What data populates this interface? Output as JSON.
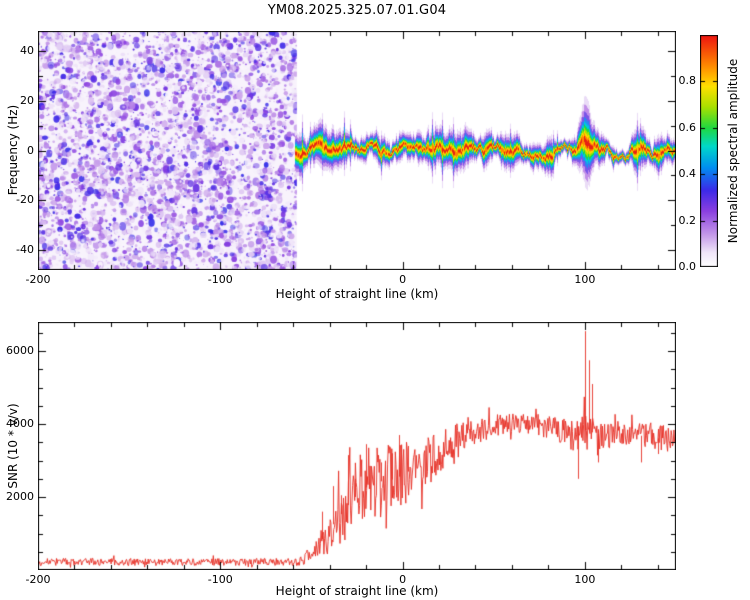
{
  "title": "YM08.2025.325.07.01.G04",
  "colors": {
    "frame": "#000000",
    "background": "#ffffff",
    "snr_line": "#e62e24",
    "noise_wash": "#f8f3fc"
  },
  "chart_data": [
    {
      "id": "spectrogram",
      "type": "heatmap",
      "title": "",
      "xlabel": "Height of straight line (km)",
      "ylabel": "Frequency (Hz)",
      "xlim": [
        -200,
        150
      ],
      "ylim": [
        -48,
        48
      ],
      "xticks": [
        -200,
        -100,
        0,
        100
      ],
      "yticks": [
        -40,
        -20,
        0,
        20,
        40
      ],
      "grid": false,
      "colorbar": {
        "label": "Normalized spectral amplitude",
        "ticks": [
          "0.0",
          "0.2",
          "0.4",
          "0.6",
          "0.8"
        ],
        "tick_values": [
          0,
          0.2,
          0.4,
          0.6,
          0.8
        ],
        "range": [
          0,
          1
        ],
        "stops": [
          [
            0.0,
            "#ffffff"
          ],
          [
            0.06,
            "#f0e6f9"
          ],
          [
            0.14,
            "#c396e8"
          ],
          [
            0.24,
            "#8a3fe0"
          ],
          [
            0.33,
            "#3c2ae8"
          ],
          [
            0.43,
            "#0090f0"
          ],
          [
            0.52,
            "#00d8c8"
          ],
          [
            0.6,
            "#20d840"
          ],
          [
            0.69,
            "#a8e000"
          ],
          [
            0.78,
            "#ffe000"
          ],
          [
            0.87,
            "#ff8800"
          ],
          [
            1.0,
            "#ee1410"
          ]
        ]
      },
      "noise_region": {
        "x_range": [
          -200,
          -58
        ],
        "description": "broadband random speckle noise, amplitudes 0.0-0.35",
        "amplitude_range": [
          0.02,
          0.34
        ]
      },
      "echo_band": {
        "x_range": [
          -59,
          150
        ],
        "center_hz": 0,
        "sigma_hz": 2.0,
        "wobble_hz": 2.5,
        "amplitude": 1.0,
        "start_blob": {
          "x": -57,
          "extra_sigma_hz": 1.6
        },
        "peak": {
          "x": 100,
          "extra_sigma_hz": 3.2,
          "upshift_hz": 4.5,
          "top_extent_hz": 20
        }
      }
    },
    {
      "id": "snr",
      "type": "line",
      "title": "",
      "xlabel": "Height of straight line (km)",
      "ylabel": "SNR (10 * v/v)",
      "xlim": [
        -200,
        150
      ],
      "ylim": [
        0,
        6800
      ],
      "xticks": [
        -200,
        -100,
        0,
        100
      ],
      "yticks": [
        2000,
        4000,
        6000
      ],
      "grid": false,
      "line_color": "#e62e24",
      "envelope": [
        [
          -200,
          220
        ],
        [
          -57,
          220
        ],
        [
          -54,
          300
        ],
        [
          -51,
          420
        ],
        [
          -48,
          600
        ],
        [
          -45,
          780
        ],
        [
          -42,
          980
        ],
        [
          -39,
          1180
        ],
        [
          -36,
          1400
        ],
        [
          -33,
          1600
        ],
        [
          -30,
          1780
        ],
        [
          -27,
          1950
        ],
        [
          -24,
          2100
        ],
        [
          -21,
          2230
        ],
        [
          -18,
          2330
        ],
        [
          -15,
          2400
        ],
        [
          -12,
          2430
        ],
        [
          -9,
          2450
        ],
        [
          -6,
          2480
        ],
        [
          -3,
          2530
        ],
        [
          0,
          2620
        ],
        [
          5,
          2750
        ],
        [
          10,
          2900
        ],
        [
          15,
          3060
        ],
        [
          20,
          3220
        ],
        [
          25,
          3380
        ],
        [
          30,
          3530
        ],
        [
          35,
          3670
        ],
        [
          40,
          3790
        ],
        [
          45,
          3880
        ],
        [
          50,
          3950
        ],
        [
          55,
          4000
        ],
        [
          60,
          4030
        ],
        [
          65,
          4010
        ],
        [
          70,
          3980
        ],
        [
          75,
          3960
        ],
        [
          80,
          3930
        ],
        [
          85,
          3870
        ],
        [
          90,
          3800
        ],
        [
          95,
          3720
        ],
        [
          100,
          3830
        ],
        [
          105,
          3760
        ],
        [
          110,
          3680
        ],
        [
          115,
          3720
        ],
        [
          120,
          3760
        ],
        [
          125,
          3720
        ],
        [
          130,
          3690
        ],
        [
          135,
          3650
        ],
        [
          140,
          3610
        ],
        [
          145,
          3660
        ],
        [
          150,
          3700
        ]
      ],
      "variability": [
        [
          -200,
          0.45
        ],
        [
          -58,
          0.45
        ],
        [
          -54,
          0.55
        ],
        [
          -48,
          0.6
        ],
        [
          -40,
          0.6
        ],
        [
          -32,
          0.55
        ],
        [
          -24,
          0.5
        ],
        [
          -16,
          0.45
        ],
        [
          -8,
          0.4
        ],
        [
          0,
          0.33
        ],
        [
          8,
          0.27
        ],
        [
          16,
          0.22
        ],
        [
          24,
          0.17
        ],
        [
          32,
          0.13
        ],
        [
          40,
          0.1
        ],
        [
          48,
          0.08
        ],
        [
          56,
          0.07
        ],
        [
          64,
          0.07
        ],
        [
          72,
          0.07
        ],
        [
          80,
          0.08
        ],
        [
          88,
          0.1
        ],
        [
          94,
          0.13
        ],
        [
          100,
          0.14
        ],
        [
          106,
          0.12
        ],
        [
          112,
          0.1
        ],
        [
          120,
          0.09
        ],
        [
          130,
          0.09
        ],
        [
          140,
          0.1
        ],
        [
          150,
          0.09
        ]
      ],
      "spikes": [
        [
          -44,
          1600
        ],
        [
          -38,
          2300
        ],
        [
          -34,
          2050
        ],
        [
          -30,
          3150
        ],
        [
          -26,
          2500
        ],
        [
          -20,
          3450
        ],
        [
          -12,
          2950
        ],
        [
          -6,
          3200
        ],
        [
          -2,
          3700
        ],
        [
          3,
          3400
        ],
        [
          96,
          2500
        ],
        [
          100,
          6550
        ],
        [
          102,
          5750
        ],
        [
          104,
          5100
        ],
        [
          107,
          2950
        ],
        [
          131,
          2950
        ],
        [
          140,
          3180
        ]
      ]
    }
  ]
}
